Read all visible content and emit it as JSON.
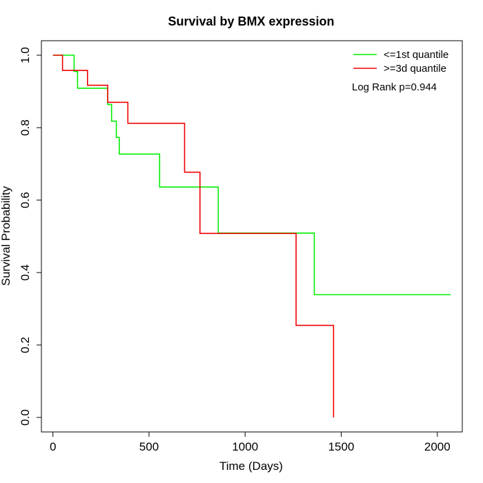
{
  "chart_data": {
    "type": "line",
    "subtype": "kaplan-meier step",
    "title": "Survival by BMX expression",
    "xlabel": "Time (Days)",
    "ylabel": "Survival Probability",
    "xlim": [
      -60,
      2130
    ],
    "ylim": [
      -0.04,
      1.04
    ],
    "xticks": [
      0,
      500,
      1000,
      1500,
      2000
    ],
    "xtick_labels": [
      "0",
      "500",
      "1000",
      "1500",
      "2000"
    ],
    "yticks": [
      0.0,
      0.2,
      0.4,
      0.6,
      0.8,
      1.0
    ],
    "ytick_labels": [
      "0.0",
      "0.2",
      "0.4",
      "0.6",
      "0.8",
      "1.0"
    ],
    "grid": false,
    "legend_position": "top-right",
    "annotation": "Log Rank p=0.944",
    "series": [
      {
        "name": "<=1st quantile",
        "color": "#00ee00",
        "x": [
          0,
          110,
          128,
          285,
          305,
          330,
          345,
          555,
          860,
          1360,
          2070
        ],
        "y": [
          1.0,
          0.955,
          0.909,
          0.864,
          0.818,
          0.773,
          0.727,
          0.636,
          0.509,
          0.339,
          0.339
        ]
      },
      {
        "name": ">=3d quantile",
        "color": "#ee0000",
        "x": [
          0,
          50,
          180,
          285,
          390,
          685,
          765,
          1265,
          1460
        ],
        "y": [
          1.0,
          0.958,
          0.917,
          0.87,
          0.812,
          0.677,
          0.508,
          0.254,
          0.0
        ]
      }
    ]
  }
}
